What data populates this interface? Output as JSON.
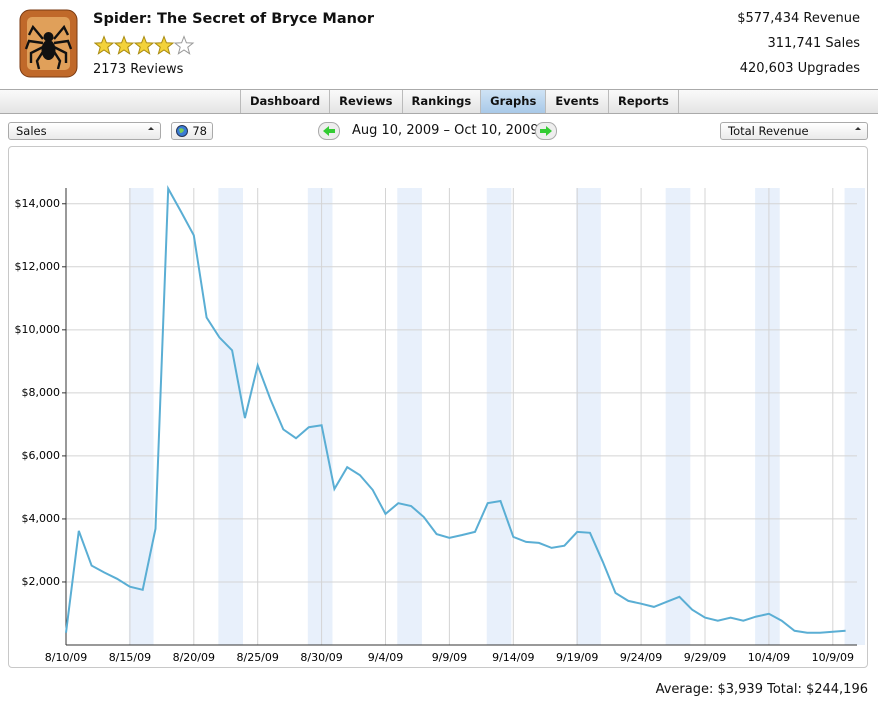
{
  "header": {
    "title": "Spider:  The Secret of Bryce Manor",
    "rating": 4,
    "reviews": "2173 Reviews",
    "stats": [
      {
        "value": "$577,434",
        "label": "Revenue"
      },
      {
        "value": "311,741",
        "label": "Sales"
      },
      {
        "value": "420,603",
        "label": "Upgrades"
      }
    ]
  },
  "tabs": [
    "Dashboard",
    "Reviews",
    "Rankings",
    "Graphs",
    "Events",
    "Reports"
  ],
  "active_tab": 3,
  "controls": {
    "metric": "Sales",
    "count": "78",
    "date_range": "Aug 10, 2009 – Oct 10, 2009",
    "mode": "Total Revenue"
  },
  "chart_data": {
    "type": "line",
    "categories": [
      "8/10/09",
      null,
      null,
      null,
      null,
      "8/15/09",
      null,
      null,
      null,
      null,
      "8/20/09",
      null,
      null,
      null,
      null,
      "8/25/09",
      null,
      null,
      null,
      null,
      "8/30/09",
      null,
      null,
      null,
      null,
      "9/4/09",
      null,
      null,
      null,
      null,
      "9/9/09",
      null,
      null,
      null,
      null,
      "9/14/09",
      null,
      null,
      null,
      null,
      "9/19/09",
      null,
      null,
      null,
      null,
      "9/24/09",
      null,
      null,
      null,
      null,
      "9/29/09",
      null,
      null,
      null,
      null,
      "10/4/09",
      null,
      null,
      null,
      null,
      "10/9/09",
      null
    ],
    "series": [
      {
        "name": "Total Revenue",
        "color": "#5aaed4",
        "values": [
          390,
          3620,
          2520,
          2300,
          2100,
          1850,
          1750,
          3690,
          14480,
          13750,
          13000,
          10390,
          9760,
          9350,
          7200,
          8870,
          7790,
          6840,
          6560,
          6910,
          6970,
          4950,
          5640,
          5390,
          4920,
          4160,
          4500,
          4410,
          4060,
          3520,
          3400,
          3490,
          3590,
          4500,
          4570,
          3430,
          3270,
          3240,
          3080,
          3150,
          3590,
          3560,
          2640,
          1650,
          1400,
          1310,
          1210,
          1370,
          1530,
          1120,
          870,
          770,
          870,
          770,
          900,
          990,
          770,
          450,
          390,
          390,
          420,
          450
        ]
      }
    ],
    "ylim": [
      0,
      14500
    ],
    "yticks": [
      {
        "value": 2000,
        "label": "$2,000"
      },
      {
        "value": 4000,
        "label": "$4,000"
      },
      {
        "value": 6000,
        "label": "$6,000"
      },
      {
        "value": 8000,
        "label": "$8,000"
      },
      {
        "value": 10000,
        "label": "$10,000"
      },
      {
        "value": 12000,
        "label": "$12,000"
      },
      {
        "value": 14000,
        "label": "$14,000"
      }
    ],
    "grid": true,
    "footer": "Average: $3,939 Total: $244,196"
  }
}
